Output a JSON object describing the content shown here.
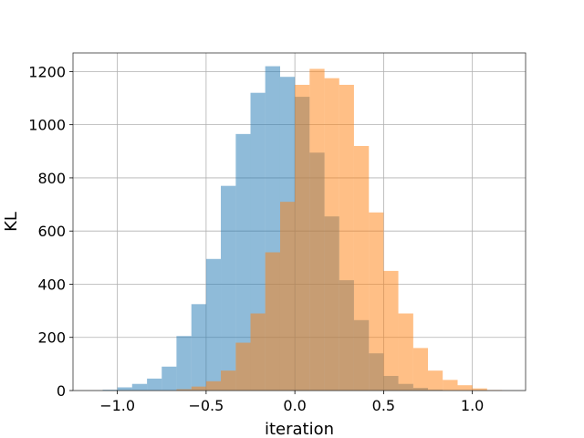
{
  "chart_data": {
    "type": "histogram",
    "xlabel": "iteration",
    "ylabel": "KL",
    "xlim": [
      -1.25,
      1.3
    ],
    "ylim": [
      0,
      1270
    ],
    "xticks": [
      -1.0,
      -0.5,
      0.0,
      0.5,
      1.0
    ],
    "xtick_labels": [
      "−1.0",
      "−0.5",
      "0.0",
      "0.5",
      "1.0"
    ],
    "yticks": [
      0,
      200,
      400,
      600,
      800,
      1000,
      1200
    ],
    "ytick_labels": [
      "0",
      "200",
      "400",
      "600",
      "800",
      "1000",
      "1200"
    ],
    "grid": true,
    "series": [
      {
        "color": "#1f77b4",
        "opacity": 0.5,
        "bins": [
          {
            "x0": -1.083,
            "x1": -1.0,
            "count": 3
          },
          {
            "x0": -1.0,
            "x1": -0.917,
            "count": 12
          },
          {
            "x0": -0.917,
            "x1": -0.833,
            "count": 25
          },
          {
            "x0": -0.833,
            "x1": -0.75,
            "count": 45
          },
          {
            "x0": -0.75,
            "x1": -0.667,
            "count": 90
          },
          {
            "x0": -0.667,
            "x1": -0.583,
            "count": 205
          },
          {
            "x0": -0.583,
            "x1": -0.5,
            "count": 325
          },
          {
            "x0": -0.5,
            "x1": -0.417,
            "count": 495
          },
          {
            "x0": -0.417,
            "x1": -0.333,
            "count": 770
          },
          {
            "x0": -0.333,
            "x1": -0.25,
            "count": 965
          },
          {
            "x0": -0.25,
            "x1": -0.167,
            "count": 1120
          },
          {
            "x0": -0.167,
            "x1": -0.083,
            "count": 1220
          },
          {
            "x0": -0.083,
            "x1": 0.0,
            "count": 1180
          },
          {
            "x0": 0.0,
            "x1": 0.083,
            "count": 1105
          },
          {
            "x0": 0.083,
            "x1": 0.167,
            "count": 895
          },
          {
            "x0": 0.167,
            "x1": 0.25,
            "count": 655
          },
          {
            "x0": 0.25,
            "x1": 0.333,
            "count": 415
          },
          {
            "x0": 0.333,
            "x1": 0.417,
            "count": 265
          },
          {
            "x0": 0.417,
            "x1": 0.5,
            "count": 140
          },
          {
            "x0": 0.5,
            "x1": 0.583,
            "count": 55
          },
          {
            "x0": 0.583,
            "x1": 0.667,
            "count": 25
          },
          {
            "x0": 0.667,
            "x1": 0.75,
            "count": 10
          },
          {
            "x0": 0.75,
            "x1": 0.833,
            "count": 3
          }
        ]
      },
      {
        "color": "#ff7f0e",
        "opacity": 0.5,
        "bins": [
          {
            "x0": -0.667,
            "x1": -0.583,
            "count": 5
          },
          {
            "x0": -0.583,
            "x1": -0.5,
            "count": 15
          },
          {
            "x0": -0.5,
            "x1": -0.417,
            "count": 35
          },
          {
            "x0": -0.417,
            "x1": -0.333,
            "count": 75
          },
          {
            "x0": -0.333,
            "x1": -0.25,
            "count": 180
          },
          {
            "x0": -0.25,
            "x1": -0.167,
            "count": 290
          },
          {
            "x0": -0.167,
            "x1": -0.083,
            "count": 520
          },
          {
            "x0": -0.083,
            "x1": 0.0,
            "count": 710
          },
          {
            "x0": 0.0,
            "x1": 0.083,
            "count": 1150
          },
          {
            "x0": 0.083,
            "x1": 0.167,
            "count": 1210
          },
          {
            "x0": 0.167,
            "x1": 0.25,
            "count": 1175
          },
          {
            "x0": 0.25,
            "x1": 0.333,
            "count": 1150
          },
          {
            "x0": 0.333,
            "x1": 0.417,
            "count": 920
          },
          {
            "x0": 0.417,
            "x1": 0.5,
            "count": 670
          },
          {
            "x0": 0.5,
            "x1": 0.583,
            "count": 450
          },
          {
            "x0": 0.583,
            "x1": 0.667,
            "count": 290
          },
          {
            "x0": 0.667,
            "x1": 0.75,
            "count": 160
          },
          {
            "x0": 0.75,
            "x1": 0.833,
            "count": 75
          },
          {
            "x0": 0.833,
            "x1": 0.917,
            "count": 40
          },
          {
            "x0": 0.917,
            "x1": 1.0,
            "count": 20
          },
          {
            "x0": 1.0,
            "x1": 1.083,
            "count": 8
          },
          {
            "x0": 1.083,
            "x1": 1.167,
            "count": 2
          }
        ]
      }
    ]
  }
}
